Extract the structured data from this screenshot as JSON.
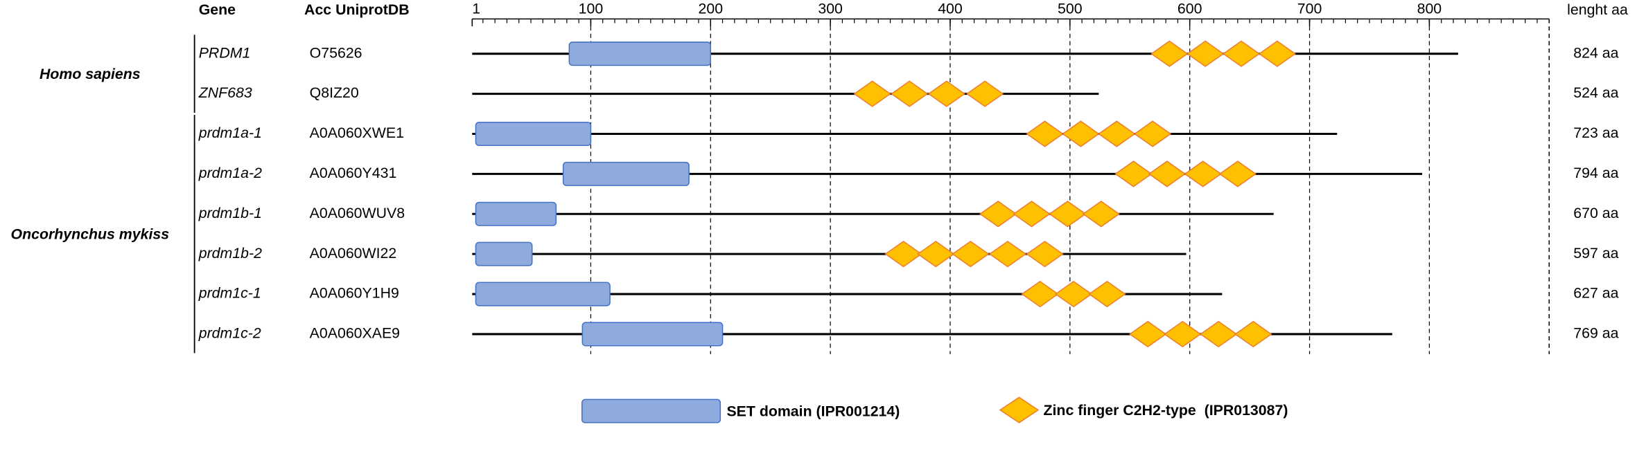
{
  "header": {
    "gene": "Gene",
    "accession": "Acc UniprotDB",
    "length": "lenght aa"
  },
  "axis": {
    "xlim": [
      1,
      900
    ],
    "ticks": [
      1,
      100,
      200,
      300,
      400,
      500,
      600,
      700,
      800
    ],
    "minor_step": 10,
    "grid": true
  },
  "groups": [
    {
      "species": "Homo sapiens",
      "proteins": [
        {
          "gene": "PRDM1",
          "accession": "O75626",
          "length": 824,
          "length_label": "824 aa",
          "set_domain": [
            82,
            200
          ],
          "zinc_fingers": [
            583,
            613,
            643,
            673
          ]
        },
        {
          "gene": "ZNF683",
          "accession": "Q8IZ20",
          "length": 524,
          "length_label": "524 aa",
          "zinc_fingers": [
            335,
            366,
            397,
            429
          ]
        }
      ]
    },
    {
      "species": "Oncorhynchus mykiss",
      "proteins": [
        {
          "gene": "prdm1a-1",
          "accession": "A0A060XWE1",
          "length": 723,
          "length_label": "723 aa",
          "set_domain": [
            4,
            100
          ],
          "zinc_fingers": [
            479,
            509,
            539,
            569
          ]
        },
        {
          "gene": "prdm1a-2",
          "accession": "A0A060Y431",
          "length": 794,
          "length_label": "794 aa",
          "set_domain": [
            77,
            182
          ],
          "zinc_fingers": [
            553,
            581,
            611,
            640
          ]
        },
        {
          "gene": "prdm1b-1",
          "accession": "A0A060WUV8",
          "length": 670,
          "length_label": "670 aa",
          "set_domain": [
            4,
            71
          ],
          "zinc_fingers": [
            440,
            468,
            498,
            526
          ]
        },
        {
          "gene": "prdm1b-2",
          "accession": "A0A060WI22",
          "length": 597,
          "length_label": "597 aa",
          "set_domain": [
            4,
            51
          ],
          "zinc_fingers": [
            361,
            388,
            417,
            448,
            479
          ]
        },
        {
          "gene": "prdm1c-1",
          "accession": "A0A060Y1H9",
          "length": 627,
          "length_label": "627 aa",
          "set_domain": [
            4,
            116
          ],
          "zinc_fingers": [
            475,
            503,
            531
          ]
        },
        {
          "gene": "prdm1c-2",
          "accession": "A0A060XAE9",
          "length": 769,
          "length_label": "769 aa",
          "set_domain": [
            93,
            210
          ],
          "zinc_fingers": [
            565,
            594,
            624,
            653
          ]
        }
      ]
    }
  ],
  "legend": {
    "set_domain": "SET domain (IPR001214)",
    "zinc_finger": "Zinc finger C2H2-type  (IPR013087)"
  }
}
